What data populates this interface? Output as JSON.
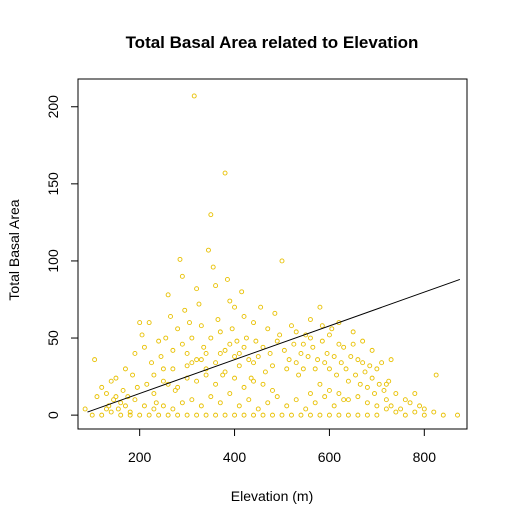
{
  "chart_data": {
    "type": "scatter",
    "title": "Total Basal Area related to Elevation",
    "xlabel": "Elevation (m)",
    "ylabel": "Total Basal Area",
    "xlim": [
      70,
      890
    ],
    "ylim": [
      -9,
      218
    ],
    "xticks": [
      200,
      400,
      600,
      800
    ],
    "yticks": [
      0,
      50,
      100,
      150,
      200
    ],
    "grid": false,
    "legend": "none",
    "point_color": "#e8c000",
    "line_color": "#000000",
    "trend_line": {
      "x": [
        90,
        875
      ],
      "y": [
        2,
        88
      ]
    },
    "series": [
      {
        "points": [
          [
            85,
            4
          ],
          [
            100,
            0
          ],
          [
            105,
            36
          ],
          [
            110,
            12
          ],
          [
            120,
            18
          ],
          [
            130,
            14
          ],
          [
            135,
            6
          ],
          [
            140,
            22
          ],
          [
            145,
            10
          ],
          [
            150,
            24
          ],
          [
            155,
            4
          ],
          [
            160,
            8
          ],
          [
            165,
            16
          ],
          [
            170,
            30
          ],
          [
            175,
            12
          ],
          [
            180,
            2
          ],
          [
            185,
            26
          ],
          [
            190,
            40
          ],
          [
            195,
            18
          ],
          [
            200,
            60
          ],
          [
            205,
            52
          ],
          [
            210,
            44
          ],
          [
            215,
            20
          ],
          [
            220,
            60
          ],
          [
            225,
            34
          ],
          [
            230,
            14
          ],
          [
            235,
            8
          ],
          [
            240,
            48
          ],
          [
            245,
            38
          ],
          [
            250,
            22
          ],
          [
            255,
            50
          ],
          [
            260,
            78
          ],
          [
            265,
            64
          ],
          [
            270,
            30
          ],
          [
            275,
            16
          ],
          [
            280,
            56
          ],
          [
            285,
            101
          ],
          [
            290,
            90
          ],
          [
            295,
            68
          ],
          [
            300,
            40
          ],
          [
            305,
            60
          ],
          [
            310,
            34
          ],
          [
            315,
            207
          ],
          [
            320,
            82
          ],
          [
            325,
            72
          ],
          [
            330,
            58
          ],
          [
            335,
            44
          ],
          [
            340,
            30
          ],
          [
            345,
            107
          ],
          [
            350,
            130
          ],
          [
            355,
            96
          ],
          [
            360,
            84
          ],
          [
            365,
            62
          ],
          [
            370,
            40
          ],
          [
            375,
            26
          ],
          [
            380,
            157
          ],
          [
            385,
            88
          ],
          [
            390,
            74
          ],
          [
            395,
            56
          ],
          [
            400,
            70
          ],
          [
            405,
            48
          ],
          [
            410,
            32
          ],
          [
            415,
            80
          ],
          [
            420,
            64
          ],
          [
            425,
            50
          ],
          [
            430,
            36
          ],
          [
            435,
            24
          ],
          [
            440,
            60
          ],
          [
            445,
            48
          ],
          [
            450,
            38
          ],
          [
            455,
            70
          ],
          [
            460,
            44
          ],
          [
            465,
            28
          ],
          [
            470,
            56
          ],
          [
            475,
            40
          ],
          [
            480,
            32
          ],
          [
            485,
            66
          ],
          [
            490,
            48
          ],
          [
            495,
            52
          ],
          [
            500,
            100
          ],
          [
            505,
            42
          ],
          [
            510,
            30
          ],
          [
            515,
            36
          ],
          [
            520,
            58
          ],
          [
            525,
            46
          ],
          [
            530,
            34
          ],
          [
            535,
            26
          ],
          [
            540,
            40
          ],
          [
            545,
            30
          ],
          [
            550,
            52
          ],
          [
            555,
            38
          ],
          [
            560,
            62
          ],
          [
            565,
            44
          ],
          [
            570,
            30
          ],
          [
            575,
            36
          ],
          [
            580,
            70
          ],
          [
            585,
            48
          ],
          [
            590,
            34
          ],
          [
            595,
            40
          ],
          [
            600,
            30
          ],
          [
            605,
            56
          ],
          [
            610,
            38
          ],
          [
            615,
            26
          ],
          [
            620,
            46
          ],
          [
            625,
            34
          ],
          [
            630,
            44
          ],
          [
            635,
            30
          ],
          [
            640,
            22
          ],
          [
            645,
            38
          ],
          [
            650,
            46
          ],
          [
            655,
            26
          ],
          [
            660,
            36
          ],
          [
            665,
            20
          ],
          [
            670,
            34
          ],
          [
            675,
            28
          ],
          [
            680,
            18
          ],
          [
            685,
            32
          ],
          [
            690,
            24
          ],
          [
            695,
            14
          ],
          [
            700,
            30
          ],
          [
            705,
            20
          ],
          [
            710,
            34
          ],
          [
            715,
            16
          ],
          [
            720,
            10
          ],
          [
            725,
            22
          ],
          [
            730,
            6
          ],
          [
            740,
            14
          ],
          [
            750,
            4
          ],
          [
            760,
            10
          ],
          [
            770,
            8
          ],
          [
            780,
            14
          ],
          [
            790,
            6
          ],
          [
            800,
            4
          ],
          [
            820,
            2
          ],
          [
            825,
            26
          ],
          [
            840,
            0
          ],
          [
            870,
            0
          ],
          [
            120,
            0
          ],
          [
            140,
            2
          ],
          [
            160,
            0
          ],
          [
            180,
            0
          ],
          [
            200,
            0
          ],
          [
            220,
            0
          ],
          [
            240,
            0
          ],
          [
            260,
            0
          ],
          [
            280,
            0
          ],
          [
            300,
            0
          ],
          [
            320,
            0
          ],
          [
            340,
            0
          ],
          [
            360,
            0
          ],
          [
            380,
            0
          ],
          [
            400,
            0
          ],
          [
            420,
            0
          ],
          [
            440,
            0
          ],
          [
            460,
            0
          ],
          [
            480,
            0
          ],
          [
            500,
            0
          ],
          [
            520,
            0
          ],
          [
            540,
            0
          ],
          [
            560,
            0
          ],
          [
            580,
            0
          ],
          [
            600,
            0
          ],
          [
            620,
            0
          ],
          [
            640,
            0
          ],
          [
            660,
            0
          ],
          [
            680,
            0
          ],
          [
            700,
            0
          ],
          [
            250,
            6
          ],
          [
            270,
            4
          ],
          [
            290,
            8
          ],
          [
            310,
            10
          ],
          [
            330,
            6
          ],
          [
            350,
            12
          ],
          [
            370,
            8
          ],
          [
            390,
            14
          ],
          [
            410,
            6
          ],
          [
            430,
            10
          ],
          [
            450,
            4
          ],
          [
            470,
            8
          ],
          [
            490,
            12
          ],
          [
            510,
            6
          ],
          [
            530,
            10
          ],
          [
            550,
            4
          ],
          [
            570,
            8
          ],
          [
            590,
            12
          ],
          [
            610,
            6
          ],
          [
            630,
            10
          ],
          [
            260,
            20
          ],
          [
            280,
            18
          ],
          [
            300,
            24
          ],
          [
            320,
            22
          ],
          [
            340,
            26
          ],
          [
            360,
            20
          ],
          [
            380,
            28
          ],
          [
            400,
            24
          ],
          [
            420,
            18
          ],
          [
            440,
            22
          ],
          [
            460,
            20
          ],
          [
            480,
            16
          ],
          [
            300,
            32
          ],
          [
            320,
            36
          ],
          [
            340,
            40
          ],
          [
            360,
            34
          ],
          [
            380,
            42
          ],
          [
            400,
            38
          ],
          [
            420,
            44
          ],
          [
            440,
            34
          ],
          [
            230,
            26
          ],
          [
            250,
            30
          ],
          [
            270,
            42
          ],
          [
            290,
            46
          ],
          [
            310,
            50
          ],
          [
            330,
            36
          ],
          [
            350,
            50
          ],
          [
            370,
            54
          ],
          [
            390,
            46
          ],
          [
            410,
            40
          ],
          [
            170,
            6
          ],
          [
            190,
            10
          ],
          [
            210,
            6
          ],
          [
            230,
            4
          ],
          [
            150,
            12
          ],
          [
            130,
            4
          ],
          [
            560,
            14
          ],
          [
            580,
            20
          ],
          [
            600,
            16
          ],
          [
            620,
            14
          ],
          [
            640,
            10
          ],
          [
            660,
            12
          ],
          [
            680,
            8
          ],
          [
            700,
            6
          ],
          [
            720,
            4
          ],
          [
            740,
            2
          ],
          [
            760,
            0
          ],
          [
            780,
            2
          ],
          [
            800,
            0
          ],
          [
            720,
            20
          ],
          [
            730,
            36
          ],
          [
            690,
            42
          ],
          [
            670,
            48
          ],
          [
            650,
            54
          ],
          [
            620,
            60
          ],
          [
            600,
            52
          ],
          [
            585,
            58
          ],
          [
            560,
            50
          ],
          [
            545,
            46
          ],
          [
            530,
            54
          ]
        ]
      }
    ]
  }
}
